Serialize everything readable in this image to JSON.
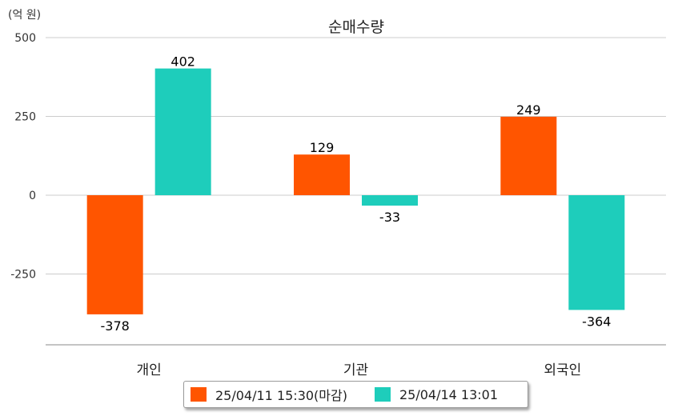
{
  "unit_label": "(억 원)",
  "chart_data": {
    "type": "bar",
    "title": "순매수량",
    "xlabel": "",
    "ylabel": "",
    "categories": [
      "개인",
      "기관",
      "외국인"
    ],
    "series": [
      {
        "name": "25/04/11 15:30(마감)",
        "color": "#ff5500",
        "values": [
          -378,
          129,
          249
        ]
      },
      {
        "name": "25/04/14 13:01",
        "color": "#1ecdbb",
        "values": [
          402,
          -33,
          -364
        ]
      }
    ],
    "yticks": [
      500,
      250,
      0,
      -250
    ],
    "ylim": [
      -475,
      500
    ],
    "grid": true,
    "legend_position": "bottom"
  }
}
